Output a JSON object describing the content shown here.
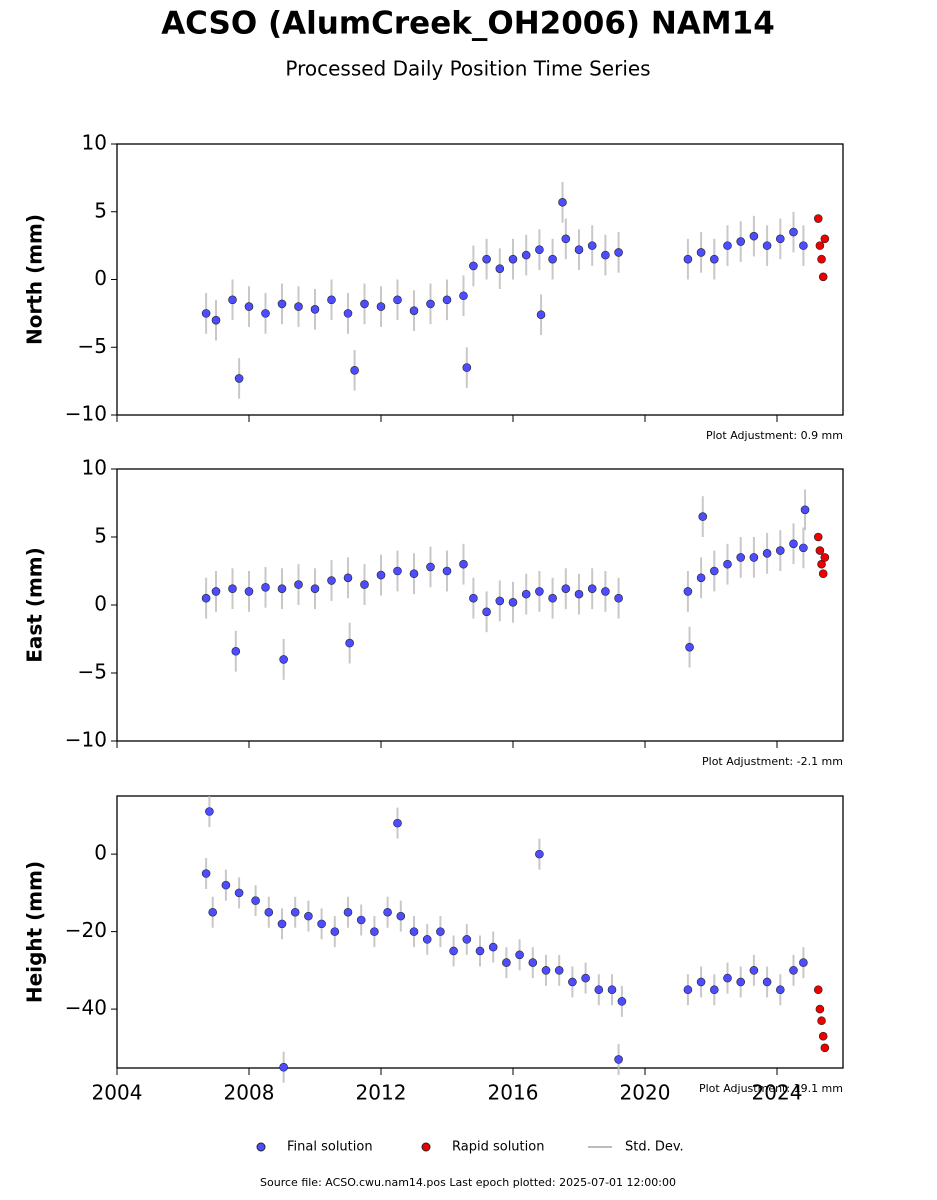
{
  "title": "ACSO (AlumCreek_OH2006) NAM14",
  "subtitle": "Processed Daily Position Time Series",
  "source": "Source file: ACSO.cwu.nam14.pos  Last epoch plotted: 2025-07-01 12:00:00",
  "chart_data": [
    {
      "type": "scatter",
      "y_label": "North (mm)",
      "annotation": "Plot Adjustment: 0.9 mm",
      "xlim": [
        2004,
        2026
      ],
      "xticks": [
        2004,
        2008,
        2012,
        2016,
        2020,
        2024
      ],
      "xtick_labels": false,
      "ylim": [
        -10,
        10
      ],
      "yticks": [
        {
          "value": -10,
          "label": "−10"
        },
        {
          "value": -5,
          "label": "−5"
        },
        0,
        5,
        10
      ],
      "error_bars": {
        "name": "Std. Dev.",
        "color": "#bbbbbb"
      },
      "series": [
        {
          "name": "Final solution",
          "color": "#4d4dff",
          "x": [
            2006.7,
            2007.0,
            2007.5,
            2007.7,
            2008.0,
            2008.5,
            2009.0,
            2009.5,
            2010.0,
            2010.5,
            2011.0,
            2011.2,
            2011.5,
            2012.0,
            2012.5,
            2013.0,
            2013.5,
            2014.0,
            2014.5,
            2014.6,
            2014.8,
            2015.2,
            2015.6,
            2016.0,
            2016.4,
            2016.8,
            2016.85,
            2017.2,
            2017.5,
            2017.6,
            2018.0,
            2018.4,
            2018.8,
            2019.2,
            2021.3,
            2021.7,
            2022.1,
            2022.5,
            2022.9,
            2023.3,
            2023.7,
            2024.1,
            2024.5,
            2024.8
          ],
          "values": [
            -2.5,
            -3,
            -1.5,
            -7.3,
            -2,
            -2.5,
            -1.8,
            -2,
            -2.2,
            -1.5,
            -2.5,
            -6.7,
            -1.8,
            -2,
            -1.5,
            -2.3,
            -1.8,
            -1.5,
            -1.2,
            -6.5,
            1,
            1.5,
            0.8,
            1.5,
            1.8,
            2.2,
            -2.6,
            1.5,
            5.7,
            3,
            2.2,
            2.5,
            1.8,
            2,
            1.5,
            2,
            1.5,
            2.5,
            2.8,
            3.2,
            2.5,
            3,
            3.5,
            2.5
          ],
          "errors": [
            1.5,
            1.5,
            1.5,
            1.5,
            1.5,
            1.5,
            1.5,
            1.5,
            1.5,
            1.5,
            1.5,
            1.5,
            1.5,
            1.5,
            1.5,
            1.5,
            1.5,
            1.5,
            1.5,
            1.5,
            1.5,
            1.5,
            1.5,
            1.5,
            1.5,
            1.5,
            1.5,
            1.5,
            1.5,
            1.5,
            1.5,
            1.5,
            1.5,
            1.5,
            1.5,
            1.5,
            1.5,
            1.5,
            1.5,
            1.5,
            1.5,
            1.5,
            1.5,
            1.5
          ]
        },
        {
          "name": "Rapid solution",
          "color": "#ee0000",
          "x": [
            2025.25,
            2025.3,
            2025.35,
            2025.4,
            2025.45
          ],
          "values": [
            4.5,
            2.5,
            1.5,
            0.2,
            3
          ]
        }
      ]
    },
    {
      "type": "scatter",
      "y_label": "East (mm)",
      "annotation": "Plot Adjustment: -2.1 mm",
      "xlim": [
        2004,
        2026
      ],
      "xticks": [
        2004,
        2008,
        2012,
        2016,
        2020,
        2024
      ],
      "xtick_labels": false,
      "ylim": [
        -10,
        10
      ],
      "yticks": [
        {
          "value": -10,
          "label": "−10"
        },
        {
          "value": -5,
          "label": "−5"
        },
        0,
        5,
        10
      ],
      "error_bars": {
        "name": "Std. Dev.",
        "color": "#bbbbbb"
      },
      "series": [
        {
          "name": "Final solution",
          "color": "#4d4dff",
          "x": [
            2006.7,
            2007.0,
            2007.5,
            2007.6,
            2008.0,
            2008.5,
            2009.0,
            2009.05,
            2009.5,
            2010.0,
            2010.5,
            2011.0,
            2011.05,
            2011.5,
            2012.0,
            2012.5,
            2013.0,
            2013.5,
            2014.0,
            2014.5,
            2014.8,
            2015.2,
            2015.6,
            2016.0,
            2016.4,
            2016.8,
            2017.2,
            2017.6,
            2018.0,
            2018.4,
            2018.8,
            2019.2,
            2021.3,
            2021.35,
            2021.7,
            2021.75,
            2022.1,
            2022.5,
            2022.9,
            2023.3,
            2023.7,
            2024.1,
            2024.5,
            2024.8,
            2024.85
          ],
          "values": [
            0.5,
            1,
            1.2,
            -3.4,
            1,
            1.3,
            1.2,
            -4,
            1.5,
            1.2,
            1.8,
            2,
            -2.8,
            1.5,
            2.2,
            2.5,
            2.3,
            2.8,
            2.5,
            3,
            0.5,
            -0.5,
            0.3,
            0.2,
            0.8,
            1,
            0.5,
            1.2,
            0.8,
            1.2,
            1,
            0.5,
            1,
            -3.1,
            2,
            6.5,
            2.5,
            3,
            3.5,
            3.5,
            3.8,
            4,
            4.5,
            4.2,
            7
          ],
          "errors": [
            1.5,
            1.5,
            1.5,
            1.5,
            1.5,
            1.5,
            1.5,
            1.5,
            1.5,
            1.5,
            1.5,
            1.5,
            1.5,
            1.5,
            1.5,
            1.5,
            1.5,
            1.5,
            1.5,
            1.5,
            1.5,
            1.5,
            1.5,
            1.5,
            1.5,
            1.5,
            1.5,
            1.5,
            1.5,
            1.5,
            1.5,
            1.5,
            1.5,
            1.5,
            1.5,
            1.5,
            1.5,
            1.5,
            1.5,
            1.5,
            1.5,
            1.5,
            1.5,
            1.5,
            1.5
          ]
        },
        {
          "name": "Rapid solution",
          "color": "#ee0000",
          "x": [
            2025.25,
            2025.3,
            2025.35,
            2025.4,
            2025.45
          ],
          "values": [
            5,
            4,
            3,
            2.3,
            3.5
          ]
        }
      ]
    },
    {
      "type": "scatter",
      "y_label": "Height (mm)",
      "annotation": "Plot Adjustment: 19.1 mm",
      "xlim": [
        2004,
        2026
      ],
      "xticks": [
        2004,
        2008,
        2012,
        2016,
        2020,
        2024
      ],
      "xtick_labels": true,
      "ylim": [
        -55.2,
        15
      ],
      "yticks": [
        {
          "value": -40,
          "label": "−40"
        },
        {
          "value": -20,
          "label": "−20"
        },
        0
      ],
      "error_bars": {
        "name": "Std. Dev.",
        "color": "#bbbbbb"
      },
      "series": [
        {
          "name": "Final solution",
          "color": "#4d4dff",
          "x": [
            2006.7,
            2006.8,
            2006.9,
            2007.3,
            2007.7,
            2008.2,
            2008.6,
            2009.0,
            2009.05,
            2009.4,
            2009.8,
            2010.2,
            2010.6,
            2011.0,
            2011.4,
            2011.8,
            2012.2,
            2012.5,
            2012.6,
            2013.0,
            2013.4,
            2013.8,
            2014.2,
            2014.6,
            2015.0,
            2015.4,
            2015.8,
            2016.2,
            2016.6,
            2016.8,
            2017.0,
            2017.4,
            2017.8,
            2018.2,
            2018.6,
            2019.0,
            2019.2,
            2019.3,
            2021.3,
            2021.7,
            2022.1,
            2022.5,
            2022.9,
            2023.3,
            2023.7,
            2024.1,
            2024.5,
            2024.8
          ],
          "values": [
            -5,
            11,
            -15,
            -8,
            -10,
            -12,
            -15,
            -18,
            -55,
            -15,
            -16,
            -18,
            -20,
            -15,
            -17,
            -20,
            -15,
            8,
            -16,
            -20,
            -22,
            -20,
            -25,
            -22,
            -25,
            -24,
            -28,
            -26,
            -28,
            0,
            -30,
            -30,
            -33,
            -32,
            -35,
            -35,
            -53,
            -38,
            -35,
            -33,
            -35,
            -32,
            -33,
            -30,
            -33,
            -35,
            -30,
            -28
          ],
          "errors": [
            4,
            4,
            4,
            4,
            4,
            4,
            4,
            4,
            4,
            4,
            4,
            4,
            4,
            4,
            4,
            4,
            4,
            4,
            4,
            4,
            4,
            4,
            4,
            4,
            4,
            4,
            4,
            4,
            4,
            4,
            4,
            4,
            4,
            4,
            4,
            4,
            4,
            4,
            4,
            4,
            4,
            4,
            4,
            4,
            4,
            4,
            4,
            4
          ]
        },
        {
          "name": "Rapid solution",
          "color": "#ee0000",
          "x": [
            2025.25,
            2025.3,
            2025.35,
            2025.4,
            2025.45
          ],
          "values": [
            -35,
            -40,
            -43,
            -47,
            -50
          ]
        }
      ]
    }
  ]
}
